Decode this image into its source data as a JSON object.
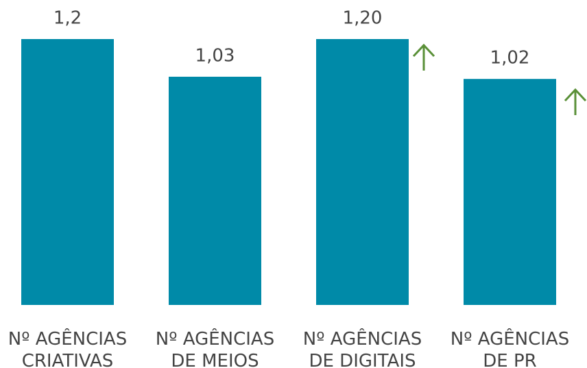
{
  "chart_data": {
    "type": "bar",
    "categories": [
      "Nº AGÊNCIAS CRIATIVAS",
      "Nº AGÊNCIAS DE MEIOS",
      "Nº AGÊNCIAS DE DIGITAIS",
      "Nº AGÊNCIAS DE PR"
    ],
    "values": [
      1.2,
      1.03,
      1.2,
      1.02
    ],
    "value_labels": [
      "1,2",
      "1,03",
      "1,20",
      "1,02"
    ],
    "color": "#008aa8"
  }
}
